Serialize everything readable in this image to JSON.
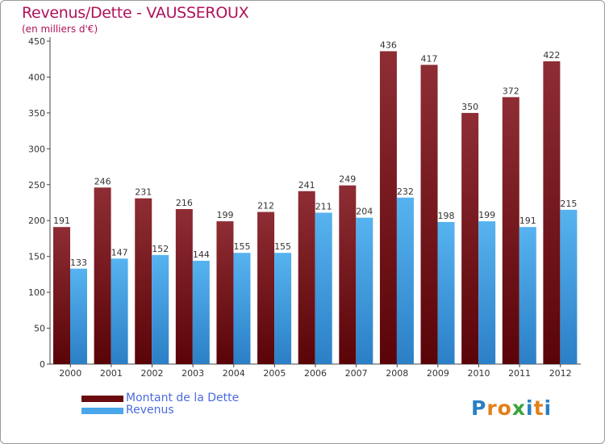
{
  "header": {
    "title": "Revenus/Dette - VAUSSEROUX",
    "subtitle": "(en milliers d'€)"
  },
  "chart_data": {
    "type": "bar",
    "title": "Revenus/Dette - VAUSSEROUX",
    "subtitle": "(en milliers d'€)",
    "xlabel": "",
    "ylabel": "",
    "ylim": [
      0,
      450
    ],
    "yticks": [
      0,
      50,
      100,
      150,
      200,
      250,
      300,
      350,
      400,
      450
    ],
    "grid": false,
    "legend_position": "bottom-left",
    "categories": [
      "2000",
      "2001",
      "2002",
      "2003",
      "2004",
      "2005",
      "2006",
      "2007",
      "2008",
      "2009",
      "2010",
      "2011",
      "2012"
    ],
    "series": [
      {
        "name": "Montant de la Dette",
        "color": "#7a1f26",
        "values": [
          191,
          246,
          231,
          216,
          199,
          212,
          241,
          249,
          436,
          417,
          350,
          372,
          422
        ]
      },
      {
        "name": "Revenus",
        "color": "#3a94d6",
        "values": [
          133,
          147,
          152,
          144,
          155,
          155,
          211,
          204,
          232,
          198,
          199,
          191,
          215
        ]
      }
    ]
  },
  "legend": {
    "items": [
      {
        "label": "Montant de la Dette",
        "color": "#6a0b0f"
      },
      {
        "label": "Revenus",
        "color": "#4aa6ea"
      }
    ]
  },
  "logo": {
    "letters": [
      "P",
      "r",
      "o",
      "x",
      "i",
      "t",
      "i"
    ],
    "colors": [
      "#2a7fc4",
      "#e2801a",
      "#e2801a",
      "#3aa33a",
      "#2a7fc4",
      "#e2801a",
      "#2a7fc4"
    ]
  }
}
